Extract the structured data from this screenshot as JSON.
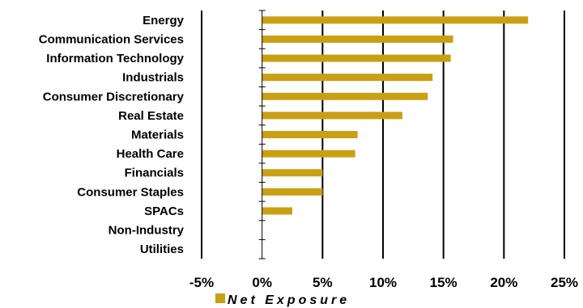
{
  "chart_data": {
    "type": "bar",
    "orientation": "horizontal",
    "title": "",
    "xlabel": "",
    "ylabel": "",
    "categories": [
      "Energy",
      "Communication Services",
      "Information Technology",
      "Industrials",
      "Consumer Discretionary",
      "Real Estate",
      "Materials",
      "Health Care",
      "Financials",
      "Consumer Staples",
      "SPACs",
      "Non-Industry",
      "Utilities"
    ],
    "series": [
      {
        "name": "Net Exposure",
        "values": [
          22.0,
          15.8,
          15.6,
          14.1,
          13.7,
          11.6,
          7.9,
          7.7,
          5.0,
          5.0,
          2.5,
          0,
          0
        ],
        "color": "#c9a014"
      }
    ],
    "xlim": [
      -5,
      25
    ],
    "xticks": [
      -5,
      0,
      5,
      10,
      15,
      20,
      25
    ],
    "xtick_labels": [
      "-5%",
      "0%",
      "5%",
      "10%",
      "15%",
      "20%",
      "25%"
    ],
    "grid": "vertical",
    "legend": "bottom"
  }
}
